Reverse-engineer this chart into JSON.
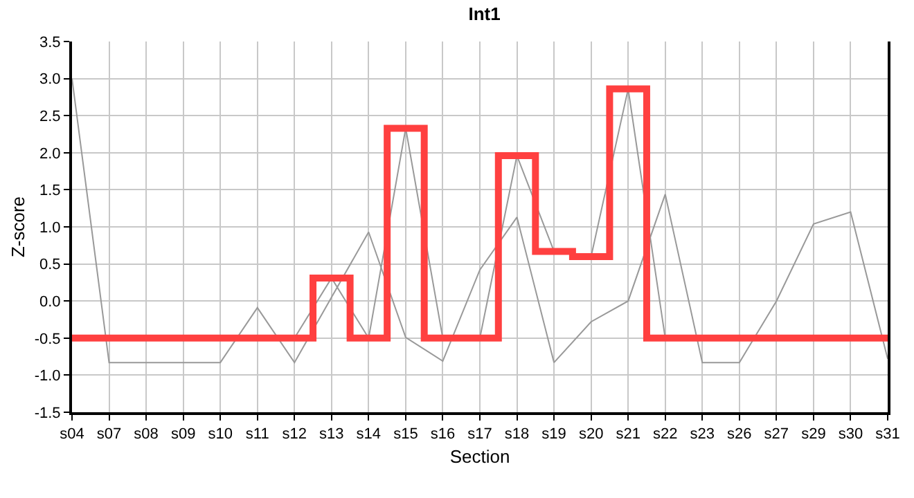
{
  "chart_data": {
    "type": "line",
    "title": "Int1",
    "xlabel": "Section",
    "ylabel": "Z-score",
    "categories": [
      "s04",
      "s07",
      "s08",
      "s09",
      "s10",
      "s11",
      "s12",
      "s13",
      "s14",
      "s15",
      "s16",
      "s17",
      "s18",
      "s19",
      "s20",
      "s21",
      "s22",
      "s23",
      "s26",
      "s27",
      "s29",
      "s30",
      "s31"
    ],
    "series": [
      {
        "color": "#999999",
        "values": [
          3.0,
          -0.83,
          -0.83,
          -0.83,
          -0.83,
          -0.09,
          -0.83,
          0.05,
          0.93,
          -0.49,
          -0.81,
          0.42,
          1.13,
          -0.83,
          -0.28,
          0.0,
          1.44,
          -0.83,
          -0.83,
          0.0,
          1.04,
          1.2,
          -0.78
        ]
      },
      {
        "color": "#999999",
        "values": [
          -0.5,
          -0.5,
          -0.5,
          -0.5,
          -0.5,
          -0.5,
          -0.5,
          0.31,
          -0.5,
          2.33,
          -0.5,
          -0.5,
          1.96,
          0.67,
          0.6,
          2.86,
          -0.5,
          -0.5,
          -0.5,
          -0.5,
          -0.5,
          -0.5,
          -0.5
        ]
      },
      {
        "type": "step",
        "color": "#ff4040",
        "values": [
          -0.5,
          -0.5,
          -0.5,
          -0.5,
          -0.5,
          -0.5,
          -0.5,
          0.31,
          -0.5,
          2.33,
          -0.5,
          -0.5,
          1.96,
          0.67,
          0.6,
          2.86,
          -0.5,
          -0.5,
          -0.5,
          -0.5,
          -0.5,
          -0.5,
          -0.5
        ]
      }
    ],
    "ylim": [
      -1.5,
      3.5
    ],
    "yticks": [
      {
        "value": -1.5,
        "label": "-1.5"
      },
      {
        "value": -1,
        "label": "-1.0"
      },
      {
        "value": -0.5,
        "label": "-0.5"
      },
      {
        "value": 0,
        "label": "0.0"
      },
      {
        "value": 0.5,
        "label": "0.5"
      },
      {
        "value": 1,
        "label": "1.0"
      },
      {
        "value": 1.5,
        "label": "1.5"
      },
      {
        "value": 2,
        "label": "2.0"
      },
      {
        "value": 2.5,
        "label": "2.5"
      },
      {
        "value": 3,
        "label": "3.0"
      },
      {
        "value": 3.5,
        "label": "3.5"
      }
    ],
    "grid": true,
    "marker": "none",
    "line_style": "solid"
  }
}
